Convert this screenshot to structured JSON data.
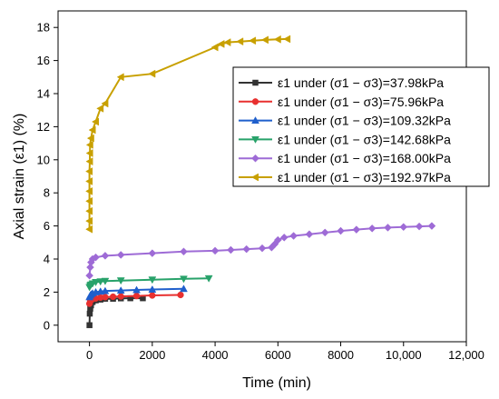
{
  "chart_data": {
    "type": "line",
    "xlabel": "Time (min)",
    "ylabel": "Axial strain (ε1) (%)",
    "xlim": [
      -1000,
      12000
    ],
    "ylim": [
      -1,
      19
    ],
    "x_ticks": [
      0,
      2000,
      4000,
      6000,
      8000,
      10000,
      12000
    ],
    "x_tick_labels": [
      "0",
      "2000",
      "4000",
      "6000",
      "8000",
      "10,000",
      "12,000"
    ],
    "y_ticks": [
      0,
      2,
      4,
      6,
      8,
      10,
      12,
      14,
      16,
      18
    ],
    "y_tick_labels": [
      "0",
      "2",
      "4",
      "6",
      "8",
      "10",
      "12",
      "14",
      "16",
      "18"
    ],
    "grid": false,
    "legend_position": "top-right",
    "series": [
      {
        "name": "ε1 under (σ1 − σ3)=37.98kPa",
        "color": "#333333",
        "marker": "square",
        "points": [
          [
            0,
            0
          ],
          [
            10,
            0.7
          ],
          [
            25,
            1.0
          ],
          [
            50,
            1.2
          ],
          [
            100,
            1.4
          ],
          [
            200,
            1.5
          ],
          [
            350,
            1.55
          ],
          [
            500,
            1.6
          ],
          [
            750,
            1.6
          ],
          [
            1000,
            1.62
          ],
          [
            1300,
            1.63
          ],
          [
            1700,
            1.63
          ]
        ]
      },
      {
        "name": "ε1 under (σ1 − σ3)=75.96kPa",
        "color": "#e8302f",
        "marker": "circle",
        "points": [
          [
            0,
            1.3
          ],
          [
            25,
            1.45
          ],
          [
            50,
            1.52
          ],
          [
            100,
            1.58
          ],
          [
            200,
            1.62
          ],
          [
            350,
            1.67
          ],
          [
            500,
            1.7
          ],
          [
            750,
            1.72
          ],
          [
            1000,
            1.74
          ],
          [
            1500,
            1.77
          ],
          [
            2000,
            1.8
          ],
          [
            2900,
            1.83
          ]
        ]
      },
      {
        "name": "ε1 under (σ1 − σ3)=109.32kPa",
        "color": "#1f5fcc",
        "marker": "triangle-up",
        "points": [
          [
            0,
            1.7
          ],
          [
            25,
            1.8
          ],
          [
            50,
            1.87
          ],
          [
            100,
            1.93
          ],
          [
            200,
            2.0
          ],
          [
            350,
            2.04
          ],
          [
            500,
            2.07
          ],
          [
            1000,
            2.1
          ],
          [
            1500,
            2.13
          ],
          [
            2000,
            2.16
          ],
          [
            3000,
            2.2
          ]
        ]
      },
      {
        "name": "ε1 under (σ1 − σ3)=142.68kPa",
        "color": "#28a26a",
        "marker": "triangle-down",
        "points": [
          [
            0,
            2.3
          ],
          [
            25,
            2.4
          ],
          [
            50,
            2.45
          ],
          [
            100,
            2.52
          ],
          [
            200,
            2.6
          ],
          [
            350,
            2.64
          ],
          [
            500,
            2.67
          ],
          [
            1000,
            2.7
          ],
          [
            2000,
            2.75
          ],
          [
            3000,
            2.8
          ],
          [
            3800,
            2.83
          ]
        ]
      },
      {
        "name": "ε1 under (σ1 − σ3)=168.00kPa",
        "color": "#9e6bd6",
        "marker": "diamond",
        "points": [
          [
            0,
            3.0
          ],
          [
            25,
            3.5
          ],
          [
            50,
            3.8
          ],
          [
            100,
            4.0
          ],
          [
            200,
            4.1
          ],
          [
            500,
            4.2
          ],
          [
            1000,
            4.25
          ],
          [
            2000,
            4.35
          ],
          [
            3000,
            4.45
          ],
          [
            4000,
            4.5
          ],
          [
            4500,
            4.55
          ],
          [
            5000,
            4.6
          ],
          [
            5500,
            4.65
          ],
          [
            5800,
            4.7
          ],
          [
            5900,
            4.9
          ],
          [
            6000,
            5.15
          ],
          [
            6200,
            5.3
          ],
          [
            6500,
            5.4
          ],
          [
            7000,
            5.5
          ],
          [
            7500,
            5.6
          ],
          [
            8000,
            5.7
          ],
          [
            8500,
            5.78
          ],
          [
            9000,
            5.85
          ],
          [
            9500,
            5.9
          ],
          [
            10000,
            5.94
          ],
          [
            10500,
            5.97
          ],
          [
            10900,
            6.0
          ]
        ]
      },
      {
        "name": "ε1 under (σ1 − σ3)=192.97kPa",
        "color": "#c8a000",
        "marker": "triangle-left",
        "points": [
          [
            0,
            5.8
          ],
          [
            0,
            6.3
          ],
          [
            0,
            6.9
          ],
          [
            0,
            7.5
          ],
          [
            0,
            8.1
          ],
          [
            0,
            8.7
          ],
          [
            0,
            9.3
          ],
          [
            10,
            9.9
          ],
          [
            15,
            10.4
          ],
          [
            20,
            10.9
          ],
          [
            50,
            11.3
          ],
          [
            100,
            11.8
          ],
          [
            200,
            12.3
          ],
          [
            350,
            13.1
          ],
          [
            500,
            13.4
          ],
          [
            1000,
            15.0
          ],
          [
            2000,
            15.2
          ],
          [
            4000,
            16.8
          ],
          [
            4200,
            17.0
          ],
          [
            4400,
            17.1
          ],
          [
            4800,
            17.15
          ],
          [
            5200,
            17.2
          ],
          [
            5600,
            17.25
          ],
          [
            6000,
            17.28
          ],
          [
            6300,
            17.3
          ]
        ]
      }
    ]
  }
}
